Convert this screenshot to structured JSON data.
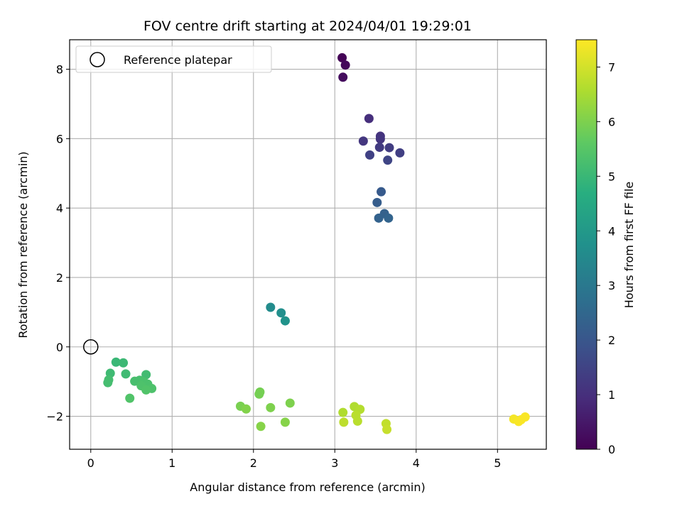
{
  "chart_data": {
    "type": "scatter",
    "title": "FOV centre drift starting at 2024/04/01 19:29:01",
    "xlabel": "Angular distance from reference (arcmin)",
    "ylabel": "Rotation from reference (arcmin)",
    "xlim": [
      -0.26,
      5.6
    ],
    "ylim": [
      -2.95,
      8.85
    ],
    "xticks": [
      0,
      1,
      2,
      3,
      4,
      5
    ],
    "yticks": [
      -2,
      0,
      2,
      4,
      6,
      8
    ],
    "grid": true,
    "legend": {
      "placement": "upper-left",
      "entries": [
        "Reference platepar"
      ]
    },
    "reference_point": {
      "x": 0,
      "y": 0,
      "marker": "open-circle"
    },
    "colorbar": {
      "label": "Hours from first FF file",
      "range": [
        0,
        7.5
      ],
      "ticks": [
        0,
        1,
        2,
        3,
        4,
        5,
        6,
        7
      ],
      "colormap": "viridis"
    },
    "points": [
      {
        "x": 3.09,
        "y": 8.33,
        "c": 0.05
      },
      {
        "x": 3.13,
        "y": 8.12,
        "c": 0.15
      },
      {
        "x": 3.1,
        "y": 7.77,
        "c": 0.25
      },
      {
        "x": 3.42,
        "y": 6.58,
        "c": 1.0
      },
      {
        "x": 3.56,
        "y": 6.07,
        "c": 1.1
      },
      {
        "x": 3.56,
        "y": 5.99,
        "c": 1.15
      },
      {
        "x": 3.35,
        "y": 5.93,
        "c": 1.2
      },
      {
        "x": 3.55,
        "y": 5.75,
        "c": 1.3
      },
      {
        "x": 3.67,
        "y": 5.74,
        "c": 1.35
      },
      {
        "x": 3.8,
        "y": 5.59,
        "c": 1.4
      },
      {
        "x": 3.43,
        "y": 5.53,
        "c": 1.45
      },
      {
        "x": 3.65,
        "y": 5.38,
        "c": 1.55
      },
      {
        "x": 3.57,
        "y": 4.47,
        "c": 2.1
      },
      {
        "x": 3.52,
        "y": 4.16,
        "c": 2.2
      },
      {
        "x": 3.61,
        "y": 3.84,
        "c": 2.3
      },
      {
        "x": 3.54,
        "y": 3.71,
        "c": 2.35
      },
      {
        "x": 3.66,
        "y": 3.71,
        "c": 2.4
      },
      {
        "x": 2.21,
        "y": 1.14,
        "c": 3.6
      },
      {
        "x": 2.34,
        "y": 0.98,
        "c": 3.7
      },
      {
        "x": 2.39,
        "y": 0.75,
        "c": 3.8
      },
      {
        "x": 0.31,
        "y": -0.44,
        "c": 5.0
      },
      {
        "x": 0.4,
        "y": -0.46,
        "c": 5.05
      },
      {
        "x": 0.24,
        "y": -0.76,
        "c": 5.1
      },
      {
        "x": 0.43,
        "y": -0.78,
        "c": 5.1
      },
      {
        "x": 0.68,
        "y": -0.8,
        "c": 5.15
      },
      {
        "x": 0.22,
        "y": -0.95,
        "c": 5.2
      },
      {
        "x": 0.21,
        "y": -1.03,
        "c": 5.2
      },
      {
        "x": 0.54,
        "y": -0.99,
        "c": 5.25
      },
      {
        "x": 0.6,
        "y": -0.96,
        "c": 5.25
      },
      {
        "x": 0.65,
        "y": -1.0,
        "c": 5.3
      },
      {
        "x": 0.7,
        "y": -1.07,
        "c": 5.3
      },
      {
        "x": 0.62,
        "y": -1.12,
        "c": 5.35
      },
      {
        "x": 0.75,
        "y": -1.2,
        "c": 5.35
      },
      {
        "x": 0.68,
        "y": -1.24,
        "c": 5.4
      },
      {
        "x": 0.48,
        "y": -1.48,
        "c": 5.4
      },
      {
        "x": 2.08,
        "y": -1.3,
        "c": 5.9
      },
      {
        "x": 2.07,
        "y": -1.36,
        "c": 5.9
      },
      {
        "x": 2.45,
        "y": -1.62,
        "c": 6.0
      },
      {
        "x": 1.84,
        "y": -1.71,
        "c": 5.95
      },
      {
        "x": 2.21,
        "y": -1.75,
        "c": 6.0
      },
      {
        "x": 1.91,
        "y": -1.79,
        "c": 6.05
      },
      {
        "x": 2.39,
        "y": -2.17,
        "c": 6.1
      },
      {
        "x": 2.09,
        "y": -2.29,
        "c": 6.1
      },
      {
        "x": 3.24,
        "y": -1.72,
        "c": 6.6
      },
      {
        "x": 3.31,
        "y": -1.8,
        "c": 6.65
      },
      {
        "x": 3.1,
        "y": -1.89,
        "c": 6.6
      },
      {
        "x": 3.26,
        "y": -1.97,
        "c": 6.7
      },
      {
        "x": 3.28,
        "y": -2.14,
        "c": 6.7
      },
      {
        "x": 3.11,
        "y": -2.17,
        "c": 6.75
      },
      {
        "x": 3.63,
        "y": -2.21,
        "c": 6.8
      },
      {
        "x": 3.64,
        "y": -2.38,
        "c": 6.85
      },
      {
        "x": 5.34,
        "y": -2.02,
        "c": 7.45
      },
      {
        "x": 5.2,
        "y": -2.08,
        "c": 7.4
      },
      {
        "x": 5.29,
        "y": -2.1,
        "c": 7.45
      },
      {
        "x": 5.26,
        "y": -2.15,
        "c": 7.45
      }
    ]
  }
}
